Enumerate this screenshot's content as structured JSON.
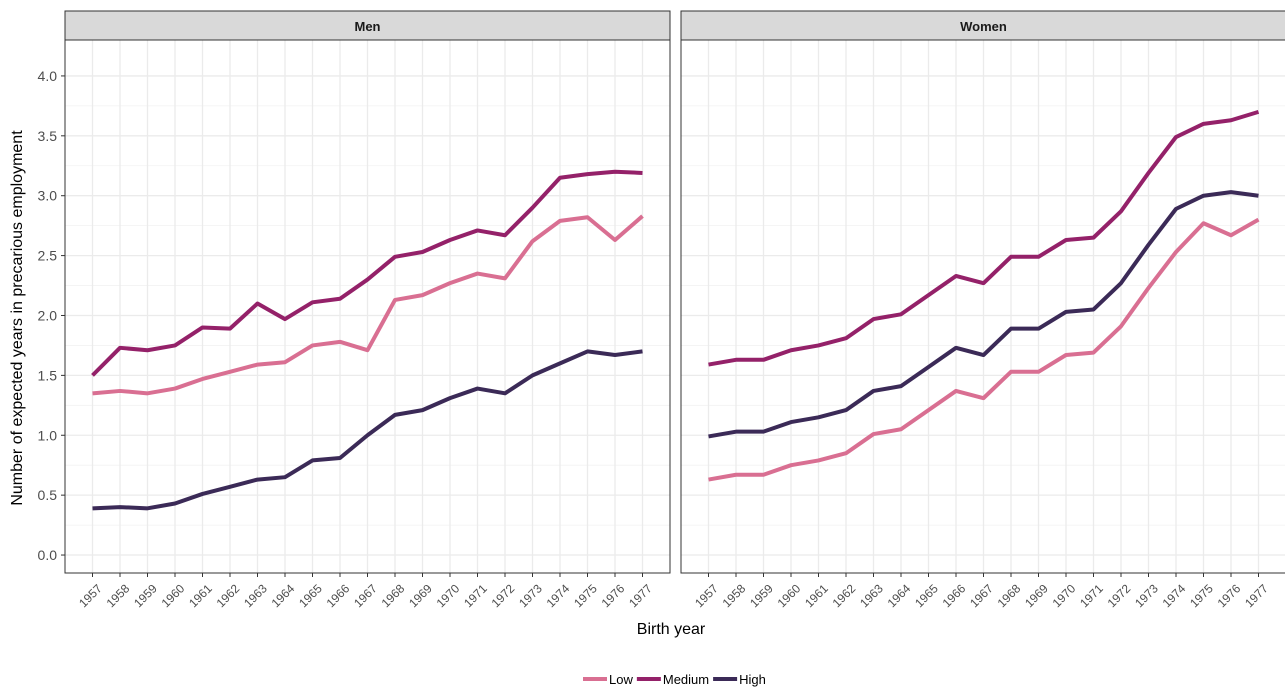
{
  "chart_data": {
    "type": "line",
    "xlabel": "Birth year",
    "ylabel": "Number of expected years in precarious employment",
    "ylim": [
      -0.15,
      4.3
    ],
    "yticks": [
      "0.0",
      "0.5",
      "1.0",
      "1.5",
      "2.0",
      "2.5",
      "3.0",
      "3.5",
      "4.0"
    ],
    "x": [
      "1957",
      "1958",
      "1959",
      "1960",
      "1961",
      "1962",
      "1963",
      "1964",
      "1965",
      "1966",
      "1967",
      "1968",
      "1969",
      "1970",
      "1971",
      "1972",
      "1973",
      "1974",
      "1975",
      "1976",
      "1977"
    ],
    "grid": true,
    "legend_position": "bottom",
    "legend": [
      {
        "name": "Low",
        "color": "#d96f92"
      },
      {
        "name": "Medium",
        "color": "#942169"
      },
      {
        "name": "High",
        "color": "#3b2a57"
      }
    ],
    "panels": [
      {
        "title": "Men",
        "series": [
          {
            "name": "Low",
            "color": "#d96f92",
            "values": [
              1.35,
              1.37,
              1.35,
              1.39,
              1.47,
              1.53,
              1.59,
              1.61,
              1.75,
              1.78,
              1.71,
              2.13,
              2.17,
              2.27,
              2.35,
              2.31,
              2.62,
              2.79,
              2.82,
              2.63,
              2.83
            ]
          },
          {
            "name": "Medium",
            "color": "#942169",
            "values": [
              1.5,
              1.73,
              1.71,
              1.75,
              1.9,
              1.89,
              2.1,
              1.97,
              2.11,
              2.14,
              2.3,
              2.49,
              2.53,
              2.63,
              2.71,
              2.67,
              2.9,
              3.15,
              3.18,
              3.2,
              3.19
            ]
          },
          {
            "name": "High",
            "color": "#3b2a57",
            "values": [
              0.39,
              0.4,
              0.39,
              0.43,
              0.51,
              0.57,
              0.63,
              0.65,
              0.79,
              0.81,
              1.0,
              1.17,
              1.21,
              1.31,
              1.39,
              1.35,
              1.5,
              1.6,
              1.7,
              1.67,
              1.7
            ]
          }
        ]
      },
      {
        "title": "Women",
        "series": [
          {
            "name": "Low",
            "color": "#d96f92",
            "values": [
              0.63,
              0.67,
              0.67,
              0.75,
              0.79,
              0.85,
              1.01,
              1.05,
              1.21,
              1.37,
              1.31,
              1.53,
              1.53,
              1.67,
              1.69,
              1.91,
              2.23,
              2.53,
              2.77,
              2.67,
              2.8
            ]
          },
          {
            "name": "Medium",
            "color": "#942169",
            "values": [
              1.59,
              1.63,
              1.63,
              1.71,
              1.75,
              1.81,
              1.97,
              2.01,
              2.17,
              2.33,
              2.27,
              2.49,
              2.49,
              2.63,
              2.65,
              2.87,
              3.19,
              3.49,
              3.6,
              3.63,
              3.7
            ]
          },
          {
            "name": "High",
            "color": "#3b2a57",
            "values": [
              0.99,
              1.03,
              1.03,
              1.11,
              1.15,
              1.21,
              1.37,
              1.41,
              1.57,
              1.73,
              1.67,
              1.89,
              1.89,
              2.03,
              2.05,
              2.27,
              2.59,
              2.89,
              3.0,
              3.03,
              3.0
            ]
          }
        ]
      }
    ]
  }
}
